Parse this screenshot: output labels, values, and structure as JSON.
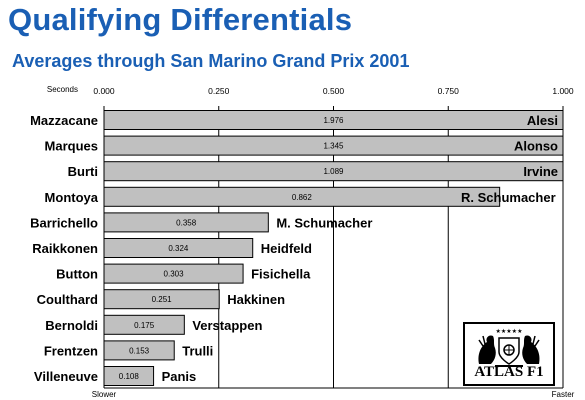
{
  "title": "Qualifying Differentials",
  "subtitle": "Averages through San Marino Grand Prix 2001",
  "chart_data": {
    "type": "bar",
    "orientation": "horizontal",
    "title": "Qualifying Differentials",
    "subtitle": "Averages through San Marino Grand Prix 2001",
    "xlabel": "Seconds",
    "xlim": [
      0,
      1
    ],
    "x_ticks": [
      "0.000",
      "0.250",
      "0.500",
      "0.750",
      "1.000"
    ],
    "x_tick_values": [
      0,
      0.25,
      0.5,
      0.75,
      1
    ],
    "axis_left_label": "Slower",
    "axis_right_label": "Faster",
    "grid": true,
    "bar_color": "#c0c0c0",
    "rows": [
      {
        "driver": "Mazzacane",
        "teammate": "Alesi",
        "value": 1.976
      },
      {
        "driver": "Marques",
        "teammate": "Alonso",
        "value": 1.345
      },
      {
        "driver": "Burti",
        "teammate": "Irvine",
        "value": 1.089
      },
      {
        "driver": "Montoya",
        "teammate": "R. Schumacher",
        "value": 0.862
      },
      {
        "driver": "Barrichello",
        "teammate": "M. Schumacher",
        "value": 0.358
      },
      {
        "driver": "Raikkonen",
        "teammate": "Heidfeld",
        "value": 0.324
      },
      {
        "driver": "Button",
        "teammate": "Fisichella",
        "value": 0.303
      },
      {
        "driver": "Coulthard",
        "teammate": "Hakkinen",
        "value": 0.251
      },
      {
        "driver": "Bernoldi",
        "teammate": "Verstappen",
        "value": 0.175
      },
      {
        "driver": "Frentzen",
        "teammate": "Trulli",
        "value": 0.153
      },
      {
        "driver": "Villeneuve",
        "teammate": "Panis",
        "value": 0.108
      }
    ]
  },
  "logo": {
    "text": "ATLAS F1",
    "stars": "★★★★★"
  }
}
